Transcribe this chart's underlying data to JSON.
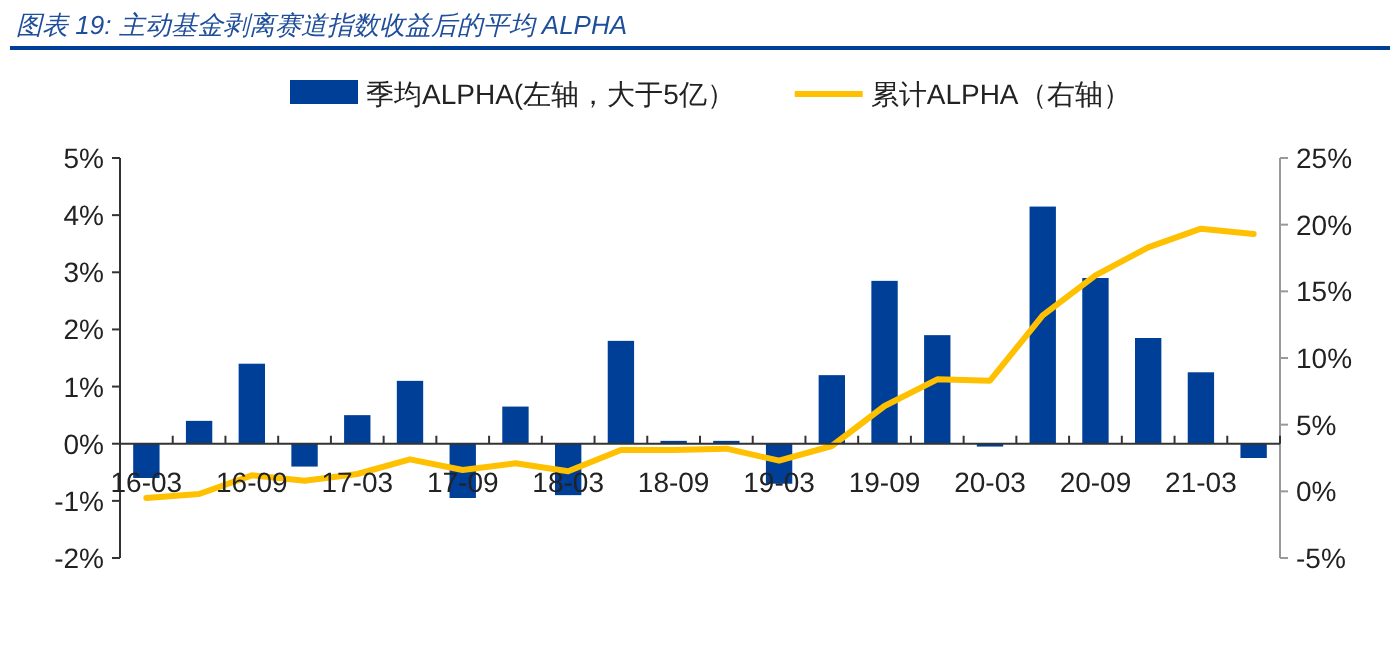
{
  "chart_data": {
    "type": "bar",
    "title": "图表 19:  主动基金剥离赛道指数收益后的平均 ALPHA",
    "categories": [
      "16-03",
      null,
      "16-09",
      null,
      "17-03",
      null,
      "17-09",
      null,
      "18-03",
      null,
      "18-09",
      null,
      "19-03",
      null,
      "19-09",
      null,
      "20-03",
      null,
      "20-09",
      null,
      "21-03",
      null
    ],
    "series": [
      {
        "name": "季均ALPHA(左轴，大于5亿）",
        "color": "#003f98",
        "values": [
          -0.6,
          0.4,
          1.4,
          -0.4,
          0.5,
          1.1,
          -0.95,
          0.65,
          -0.9,
          1.8,
          0.05,
          0.05,
          -0.7,
          1.2,
          2.85,
          1.9,
          -0.05,
          4.15,
          2.9,
          1.85,
          1.25,
          -0.25
        ]
      },
      {
        "name": "累计ALPHA（右轴）",
        "type": "line",
        "axis": "y2",
        "color": "#ffc000",
        "values": [
          -0.5,
          -0.2,
          1.2,
          0.8,
          1.3,
          2.4,
          1.6,
          2.1,
          1.5,
          3.1,
          3.1,
          3.2,
          2.3,
          3.4,
          6.4,
          8.4,
          8.3,
          13.2,
          16.2,
          18.3,
          19.7,
          19.3
        ]
      }
    ],
    "ylim": [
      -2,
      5
    ],
    "yticks": [
      {
        "value": -2,
        "label": "-2%"
      },
      {
        "value": -1,
        "label": "-1%"
      },
      {
        "value": 0,
        "label": "0%"
      },
      {
        "value": 1,
        "label": "1%"
      },
      {
        "value": 2,
        "label": "2%"
      },
      {
        "value": 3,
        "label": "3%"
      },
      {
        "value": 4,
        "label": "4%"
      },
      {
        "value": 5,
        "label": "5%"
      }
    ],
    "y2lim": [
      -5,
      25
    ],
    "y2ticks": [
      {
        "value": -5,
        "label": "-5%"
      },
      {
        "value": 0,
        "label": "0%"
      },
      {
        "value": 5,
        "label": "5%"
      },
      {
        "value": 10,
        "label": "10%"
      },
      {
        "value": 15,
        "label": "15%"
      },
      {
        "value": 20,
        "label": "20%"
      },
      {
        "value": 25,
        "label": "25%"
      }
    ],
    "legend": "top",
    "grid": false
  }
}
